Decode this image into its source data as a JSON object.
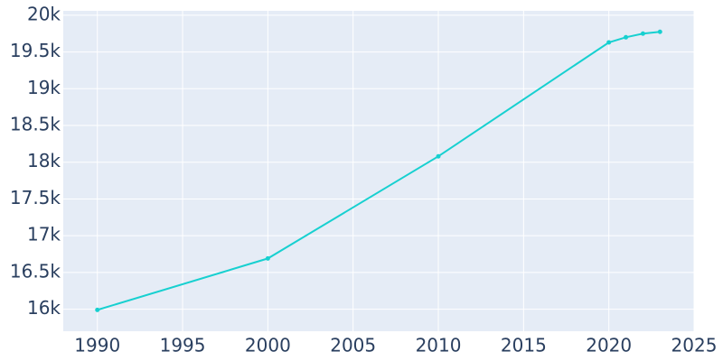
{
  "chart_data": {
    "type": "line",
    "x": [
      1990,
      2000,
      2010,
      2020,
      2021,
      2022,
      2023
    ],
    "series": [
      {
        "color": "#17d0d0",
        "values": [
          15990,
          16690,
          18080,
          19630,
          19700,
          19750,
          19775
        ]
      }
    ],
    "xlim": [
      1988,
      2025
    ],
    "xticks": [
      1990,
      1995,
      2000,
      2005,
      2010,
      2015,
      2020,
      2025
    ],
    "ylim": [
      15700,
      20060
    ],
    "yticks": [
      {
        "value": 16000,
        "label": "16k"
      },
      {
        "value": 16500,
        "label": "16.5k"
      },
      {
        "value": 17000,
        "label": "17k"
      },
      {
        "value": 17500,
        "label": "17.5k"
      },
      {
        "value": 18000,
        "label": "18k"
      },
      {
        "value": 18500,
        "label": "18.5k"
      },
      {
        "value": 19000,
        "label": "19k"
      },
      {
        "value": 19500,
        "label": "19.5k"
      },
      {
        "value": 20000,
        "label": "20k"
      }
    ],
    "grid": true
  }
}
